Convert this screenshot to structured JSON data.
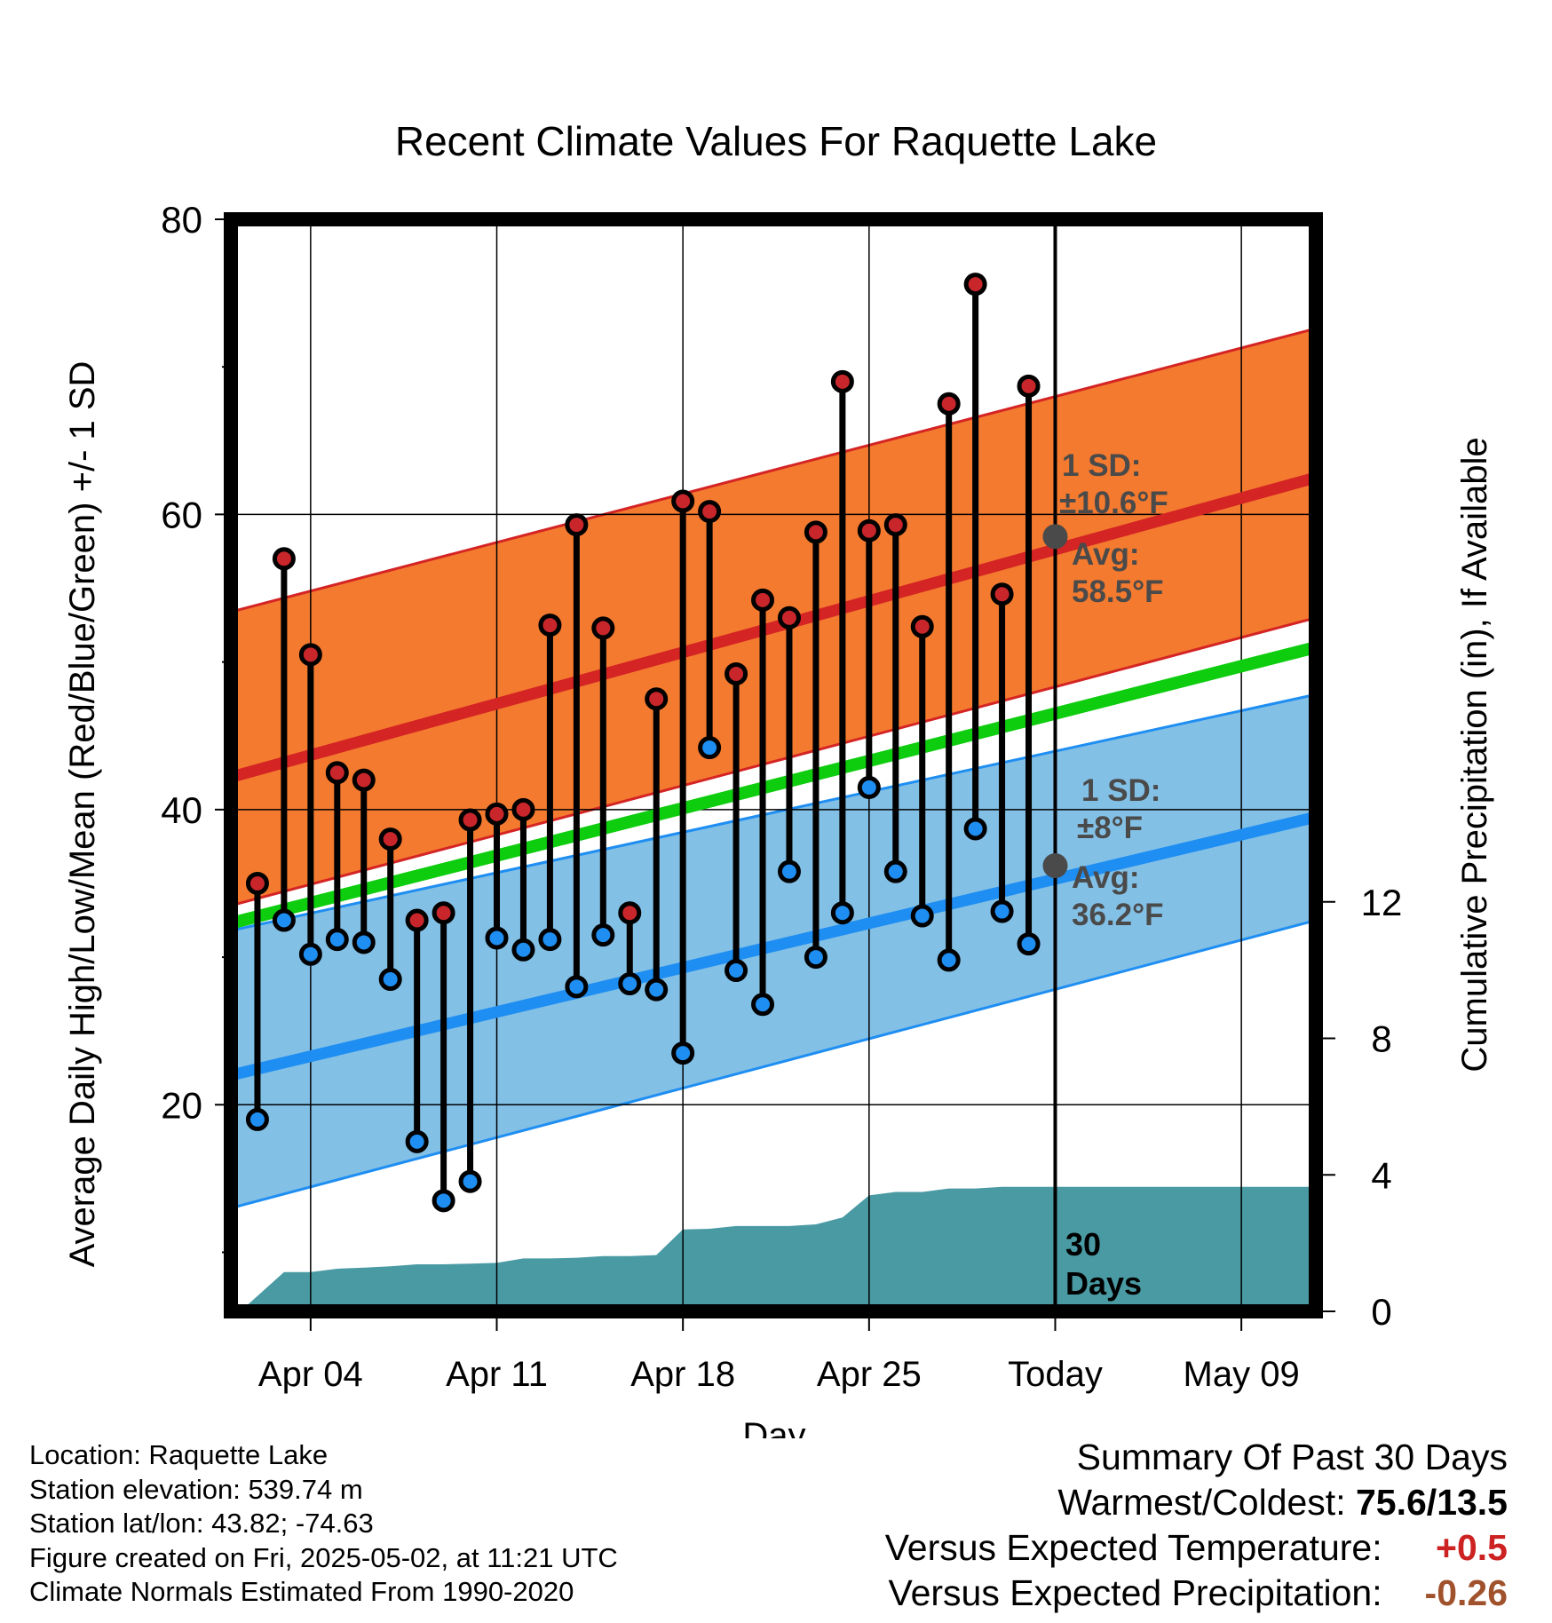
{
  "chart_data": {
    "type": "range-dot",
    "title": "Recent Climate Values For Raquette Lake",
    "xlabel": "Day",
    "ylabel_left": "Average Daily High/Low/Mean (Red/Blue/Green) +/- 1 SD",
    "ylabel_right": "Cumulative Precipitation (in), If Available",
    "ylim": [
      6,
      80
    ],
    "y2lim": [
      0,
      32
    ],
    "yticks": [
      20,
      40,
      60,
      80
    ],
    "y2ticks": [
      0,
      4,
      8,
      12
    ],
    "xlim": [
      0,
      40.8
    ],
    "xticks": [
      {
        "x": 3,
        "label": "Apr 04"
      },
      {
        "x": 10,
        "label": "Apr 11"
      },
      {
        "x": 17,
        "label": "Apr 18"
      },
      {
        "x": 24,
        "label": "Apr 25"
      },
      {
        "x": 31,
        "label": "Today"
      },
      {
        "x": 38,
        "label": "May 09"
      }
    ],
    "today_x": 31,
    "today_label": [
      "30",
      "Days"
    ],
    "days": [
      1,
      2,
      3,
      4,
      5,
      6,
      7,
      8,
      9,
      10,
      11,
      12,
      13,
      14,
      15,
      16,
      17,
      18,
      19,
      20,
      21,
      22,
      23,
      24,
      25,
      26,
      27,
      28,
      29,
      30
    ],
    "highs": [
      35.0,
      57.0,
      50.5,
      42.5,
      42.0,
      38.0,
      32.5,
      33.0,
      39.3,
      39.7,
      40.0,
      52.5,
      59.3,
      52.3,
      33.0,
      47.5,
      60.9,
      60.2,
      49.2,
      54.2,
      53.0,
      58.8,
      69.0,
      58.9,
      59.3,
      52.4,
      67.5,
      75.6,
      54.6,
      68.7
    ],
    "lows": [
      19.0,
      32.5,
      30.2,
      31.2,
      31.0,
      28.5,
      17.5,
      13.5,
      14.8,
      31.3,
      30.5,
      31.2,
      28.0,
      31.5,
      28.2,
      27.8,
      23.5,
      44.2,
      29.1,
      26.8,
      35.8,
      30.0,
      33.0,
      41.5,
      35.8,
      32.8,
      29.8,
      38.7,
      33.1,
      30.9
    ],
    "normals": {
      "x": [
        0,
        40.8
      ],
      "mean_high": [
        42.2,
        62.5
      ],
      "mean_high_upper_sd": [
        53.4,
        72.6
      ],
      "mean_high_lower_sd": [
        33.5,
        53.0
      ],
      "mean": [
        32.3,
        51.0
      ],
      "mean_low": [
        22.0,
        39.5
      ],
      "mean_low_upper_sd": [
        31.8,
        47.8
      ],
      "mean_low_lower_sd": [
        13.0,
        32.5
      ]
    },
    "cumulative_precip": {
      "x": [
        0,
        0.5,
        2,
        3,
        4,
        5,
        6,
        7,
        8,
        9,
        10,
        11,
        12,
        13,
        14,
        15,
        16,
        17,
        18,
        19,
        20,
        21,
        22,
        23,
        24,
        25,
        26,
        27,
        28,
        29,
        30,
        31,
        40.8
      ],
      "values": [
        0,
        0.1,
        1.15,
        1.15,
        1.25,
        1.28,
        1.32,
        1.38,
        1.38,
        1.4,
        1.42,
        1.55,
        1.55,
        1.57,
        1.62,
        1.62,
        1.65,
        2.4,
        2.42,
        2.5,
        2.5,
        2.5,
        2.55,
        2.75,
        3.4,
        3.5,
        3.5,
        3.6,
        3.6,
        3.65,
        3.65,
        3.65,
        3.65
      ]
    },
    "annotations": {
      "high": {
        "sd_title": "1 SD:",
        "sd_value": "±10.6°F",
        "avg_title": "Avg:",
        "avg_value": "58.5°F",
        "avg": 58.5
      },
      "low": {
        "sd_title": "1 SD:",
        "sd_value": "±8°F",
        "avg_title": "Avg:",
        "avg_value": "36.2°F",
        "avg": 36.2
      }
    },
    "colors": {
      "high_band": "#f47a2f",
      "high_line": "#d42424",
      "low_band": "#83c0e6",
      "low_line": "#1e8ef2",
      "mean_line": "#0ecc0e",
      "precip": "#4a9aa4",
      "high_dot": "#c8262b",
      "low_dot": "#1e8ef2",
      "annotation": "#4a4a4a"
    }
  },
  "info": {
    "location": "Location: Raquette Lake",
    "elevation": "Station elevation: 539.74 m",
    "latlon": "Station lat/lon: 43.82; -74.63",
    "created": "Figure created on Fri, 2025-05-02, at 11:21 UTC",
    "normals": "Climate Normals Estimated From 1990-2020"
  },
  "summary": {
    "title": "Summary Of Past 30 Days",
    "warmest_label": "Warmest/Coldest:",
    "warmest_value": "75.6/13.5",
    "temp_label": "Versus Expected Temperature:",
    "temp_value": "+0.5",
    "precip_label": "Versus Expected Precipitation:",
    "precip_value": "-0.26"
  }
}
